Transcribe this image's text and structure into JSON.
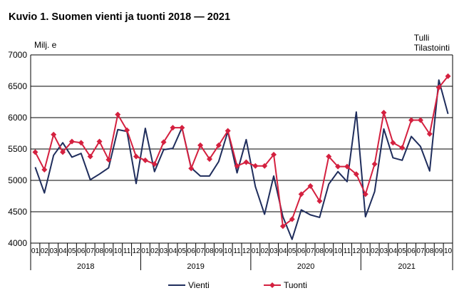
{
  "header": {
    "title": "Kuvio 1. Suomen vienti ja tuonti 2018 — 2021",
    "source_line1": "Tulli",
    "source_line2": "Tilastointi"
  },
  "chart_data": {
    "type": "line",
    "title": "Kuvio 1. Suomen vienti ja tuonti 2018 — 2021",
    "ylabel": "Milj. e",
    "xlabel": "",
    "ylim": [
      4000,
      7000
    ],
    "yticks": [
      4000,
      4500,
      5000,
      5500,
      6000,
      6500,
      7000
    ],
    "grid": true,
    "legend_position": "bottom",
    "month_labels": [
      "01",
      "02",
      "03",
      "04",
      "05",
      "06",
      "07",
      "08",
      "09",
      "10",
      "11",
      "12",
      "01",
      "02",
      "03",
      "04",
      "05",
      "06",
      "07",
      "08",
      "09",
      "10",
      "11",
      "12",
      "01",
      "02",
      "03",
      "04",
      "05",
      "06",
      "07",
      "08",
      "09",
      "10",
      "11",
      "12",
      "01",
      "02",
      "03",
      "04",
      "05",
      "06",
      "07",
      "08",
      "09",
      "10"
    ],
    "years": [
      {
        "label": "2018",
        "months": 12
      },
      {
        "label": "2019",
        "months": 12
      },
      {
        "label": "2020",
        "months": 12
      },
      {
        "label": "2021",
        "months": 10
      }
    ],
    "series": [
      {
        "name": "Vienti",
        "color": "#1f2d5c",
        "marker": "none",
        "values": [
          5210,
          4800,
          5400,
          5600,
          5370,
          5430,
          5010,
          5100,
          5200,
          5810,
          5780,
          4950,
          5830,
          5140,
          5490,
          5510,
          5840,
          5200,
          5070,
          5070,
          5300,
          5780,
          5120,
          5650,
          4900,
          4460,
          5070,
          4420,
          4060,
          4530,
          4450,
          4410,
          4940,
          5140,
          4980,
          6090,
          4420,
          4820,
          5820,
          5360,
          5320,
          5700,
          5540,
          5150,
          6600,
          6060
        ]
      },
      {
        "name": "Tuonti",
        "color": "#d4203f",
        "marker": "diamond",
        "values": [
          5450,
          5170,
          5730,
          5450,
          5620,
          5600,
          5380,
          5620,
          5330,
          6050,
          5800,
          5380,
          5320,
          5260,
          5610,
          5840,
          5840,
          5190,
          5560,
          5340,
          5560,
          5790,
          5230,
          5290,
          5230,
          5230,
          5410,
          4270,
          4380,
          4780,
          4910,
          4670,
          5380,
          5220,
          5220,
          5100,
          4780,
          5260,
          6080,
          5600,
          5520,
          5960,
          5960,
          5740,
          6480,
          6660
        ]
      }
    ]
  }
}
